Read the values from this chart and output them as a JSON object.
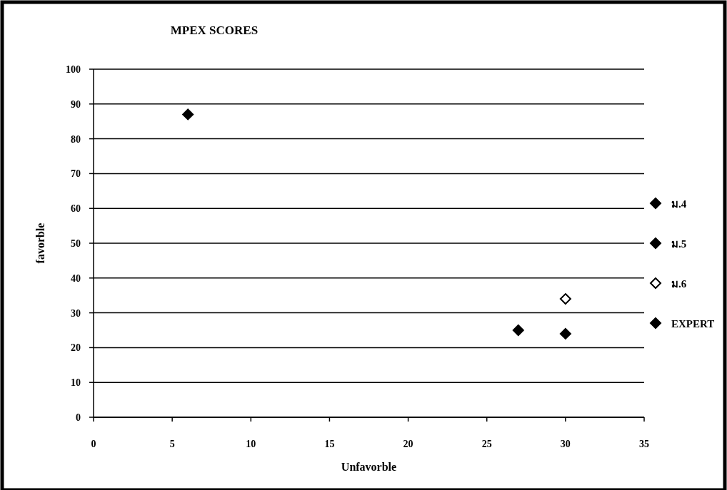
{
  "chart_data": {
    "type": "scatter",
    "title": "MPEX SCORES",
    "xlabel": "Unfavorble",
    "ylabel": "favorble",
    "series": [
      {
        "name": "ม.4",
        "color": "#000000",
        "x": [
          27
        ],
        "values": [
          25
        ]
      },
      {
        "name": "ม.5",
        "color": "#000000",
        "x": [
          30
        ],
        "values": [
          24
        ]
      },
      {
        "name": "ม.6",
        "color": "#ffffff",
        "x": [
          30
        ],
        "values": [
          34
        ]
      },
      {
        "name": "EXPERT",
        "color": "#000000",
        "x": [
          6
        ],
        "values": [
          87
        ]
      }
    ],
    "xlim": [
      0,
      35
    ],
    "xticks": [
      0,
      5,
      10,
      15,
      20,
      25,
      30,
      35
    ],
    "ylim": [
      0,
      100
    ],
    "yticks": [
      0,
      10,
      20,
      30,
      40,
      50,
      60,
      70,
      80,
      90,
      100
    ],
    "grid": "y",
    "legend": "right",
    "marker": "diamond"
  }
}
